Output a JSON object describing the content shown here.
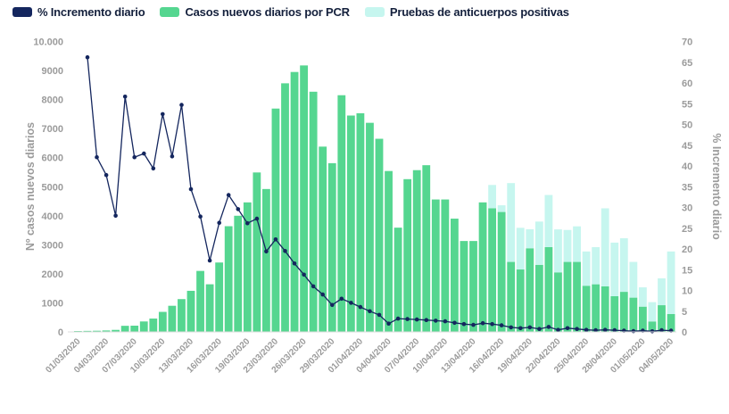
{
  "legend": {
    "items": [
      {
        "label": "% Incremento diario",
        "color": "#14265e"
      },
      {
        "label": "Casos nuevos diarios por PCR",
        "color": "#55d690"
      },
      {
        "label": "Pruebas de anticuerpos positivas",
        "color": "#c6f6ef"
      }
    ]
  },
  "chart_data": {
    "type": "bar+line",
    "title": "",
    "categories": [
      "01/03/2020",
      "02/03/2020",
      "03/03/2020",
      "04/03/2020",
      "05/03/2020",
      "06/03/2020",
      "07/03/2020",
      "08/03/2020",
      "09/03/2020",
      "10/03/2020",
      "11/03/2020",
      "12/03/2020",
      "13/03/2020",
      "14/03/2020",
      "15/03/2020",
      "16/03/2020",
      "17/03/2020",
      "18/03/2020",
      "19/03/2020",
      "20/03/2020",
      "21/03/2020",
      "23/03/2020",
      "24/03/2020",
      "25/03/2020",
      "26/03/2020",
      "27/03/2020",
      "28/03/2020",
      "29/03/2020",
      "30/03/2020",
      "31/03/2020",
      "01/04/2020",
      "02/04/2020",
      "03/04/2020",
      "04/04/2020",
      "05/04/2020",
      "06/04/2020",
      "07/04/2020",
      "08/04/2020",
      "09/04/2020",
      "10/04/2020",
      "11/04/2020",
      "12/04/2020",
      "13/04/2020",
      "14/04/2020",
      "15/04/2020",
      "16/04/2020",
      "17/04/2020",
      "18/04/2020",
      "19/04/2020",
      "20/04/2020",
      "21/04/2020",
      "22/04/2020",
      "23/04/2020",
      "24/04/2020",
      "25/04/2020",
      "26/04/2020",
      "27/04/2020",
      "28/04/2020",
      "29/04/2020",
      "30/04/2020",
      "01/05/2020",
      "02/05/2020",
      "03/05/2020",
      "04/05/2020"
    ],
    "x_tick_every": 3,
    "series": [
      {
        "name": "Casos nuevos diarios por PCR",
        "type": "bar",
        "color": "#55d690",
        "values": [
          30,
          35,
          40,
          50,
          70,
          210,
          215,
          360,
          460,
          690,
          900,
          1130,
          1415,
          2100,
          1640,
          2390,
          3640,
          4000,
          4460,
          5490,
          4920,
          7690,
          8560,
          8950,
          9175,
          8270,
          6380,
          5810,
          8150,
          7450,
          7530,
          7200,
          6650,
          5540,
          3590,
          5260,
          5570,
          5740,
          4560,
          4560,
          3900,
          3130,
          3130,
          4460,
          4260,
          4130,
          2410,
          2150,
          2880,
          2310,
          2920,
          2050,
          2410,
          2410,
          1590,
          1640,
          1570,
          1230,
          1380,
          1180,
          870,
          360,
          920,
          615
        ]
      },
      {
        "name": "Pruebas de anticuerpos positivas",
        "type": "bar",
        "stacked_on": 0,
        "color": "#c6f6ef",
        "values": [
          0,
          0,
          0,
          0,
          0,
          0,
          0,
          0,
          0,
          0,
          0,
          0,
          0,
          0,
          0,
          0,
          0,
          0,
          0,
          0,
          0,
          0,
          0,
          0,
          0,
          0,
          0,
          0,
          0,
          0,
          0,
          0,
          0,
          0,
          0,
          0,
          0,
          0,
          0,
          0,
          0,
          0,
          0,
          0,
          800,
          230,
          2715,
          1435,
          655,
          1490,
          1795,
          1480,
          1100,
          1225,
          1180,
          1280,
          2685,
          1845,
          1845,
          1230,
          665,
          665,
          925,
          2155
        ]
      },
      {
        "name": "% Incremento diario",
        "type": "line",
        "axis": "right",
        "color": "#14265e",
        "values": [
          null,
          66.2,
          42.1,
          37.8,
          28,
          56.7,
          42.1,
          43,
          39.4,
          52.5,
          42.3,
          54.7,
          34.4,
          27.8,
          17.2,
          26.3,
          33,
          29.6,
          26.2,
          27.3,
          19.4,
          22.3,
          19.5,
          16.5,
          13.8,
          11,
          9,
          6.5,
          8,
          7,
          6,
          5,
          4.1,
          2,
          3.2,
          3.1,
          3,
          2.85,
          2.7,
          2.55,
          2.2,
          1.9,
          1.7,
          2.1,
          1.9,
          1.6,
          1.1,
          0.9,
          1.1,
          0.7,
          1.2,
          0.5,
          0.9,
          0.7,
          0.5,
          0.4,
          0.5,
          0.4,
          0.3,
          0.2,
          0.3,
          0.15,
          0.4,
          0.3
        ]
      }
    ],
    "left_axis": {
      "title": "Nº casos nuevos diarios",
      "range": [
        0,
        10000
      ],
      "ticks": [
        {
          "v": 0,
          "label": "0"
        },
        {
          "v": 1000,
          "label": "1000"
        },
        {
          "v": 2000,
          "label": "2000"
        },
        {
          "v": 3000,
          "label": "3000"
        },
        {
          "v": 4000,
          "label": "4000"
        },
        {
          "v": 5000,
          "label": "5000"
        },
        {
          "v": 6000,
          "label": "6000"
        },
        {
          "v": 7000,
          "label": "7000"
        },
        {
          "v": 8000,
          "label": "8000"
        },
        {
          "v": 9000,
          "label": "9000"
        },
        {
          "v": 10000,
          "label": "10.000"
        }
      ]
    },
    "right_axis": {
      "title": "% Incremento diario",
      "range": [
        0,
        70
      ],
      "ticks": [
        {
          "v": 0,
          "label": "0"
        },
        {
          "v": 5,
          "label": "5"
        },
        {
          "v": 10,
          "label": "10"
        },
        {
          "v": 15,
          "label": "15"
        },
        {
          "v": 20,
          "label": "20"
        },
        {
          "v": 25,
          "label": "25"
        },
        {
          "v": 30,
          "label": "30"
        },
        {
          "v": 35,
          "label": "35"
        },
        {
          "v": 40,
          "label": "40"
        },
        {
          "v": 45,
          "label": "45"
        },
        {
          "v": 50,
          "label": "50"
        },
        {
          "v": 55,
          "label": "55"
        },
        {
          "v": 60,
          "label": "60"
        },
        {
          "v": 65,
          "label": "65"
        },
        {
          "v": 70,
          "label": "70"
        }
      ]
    },
    "grid": false,
    "legend_position": "top-left",
    "baseline_color": "#dedede"
  }
}
